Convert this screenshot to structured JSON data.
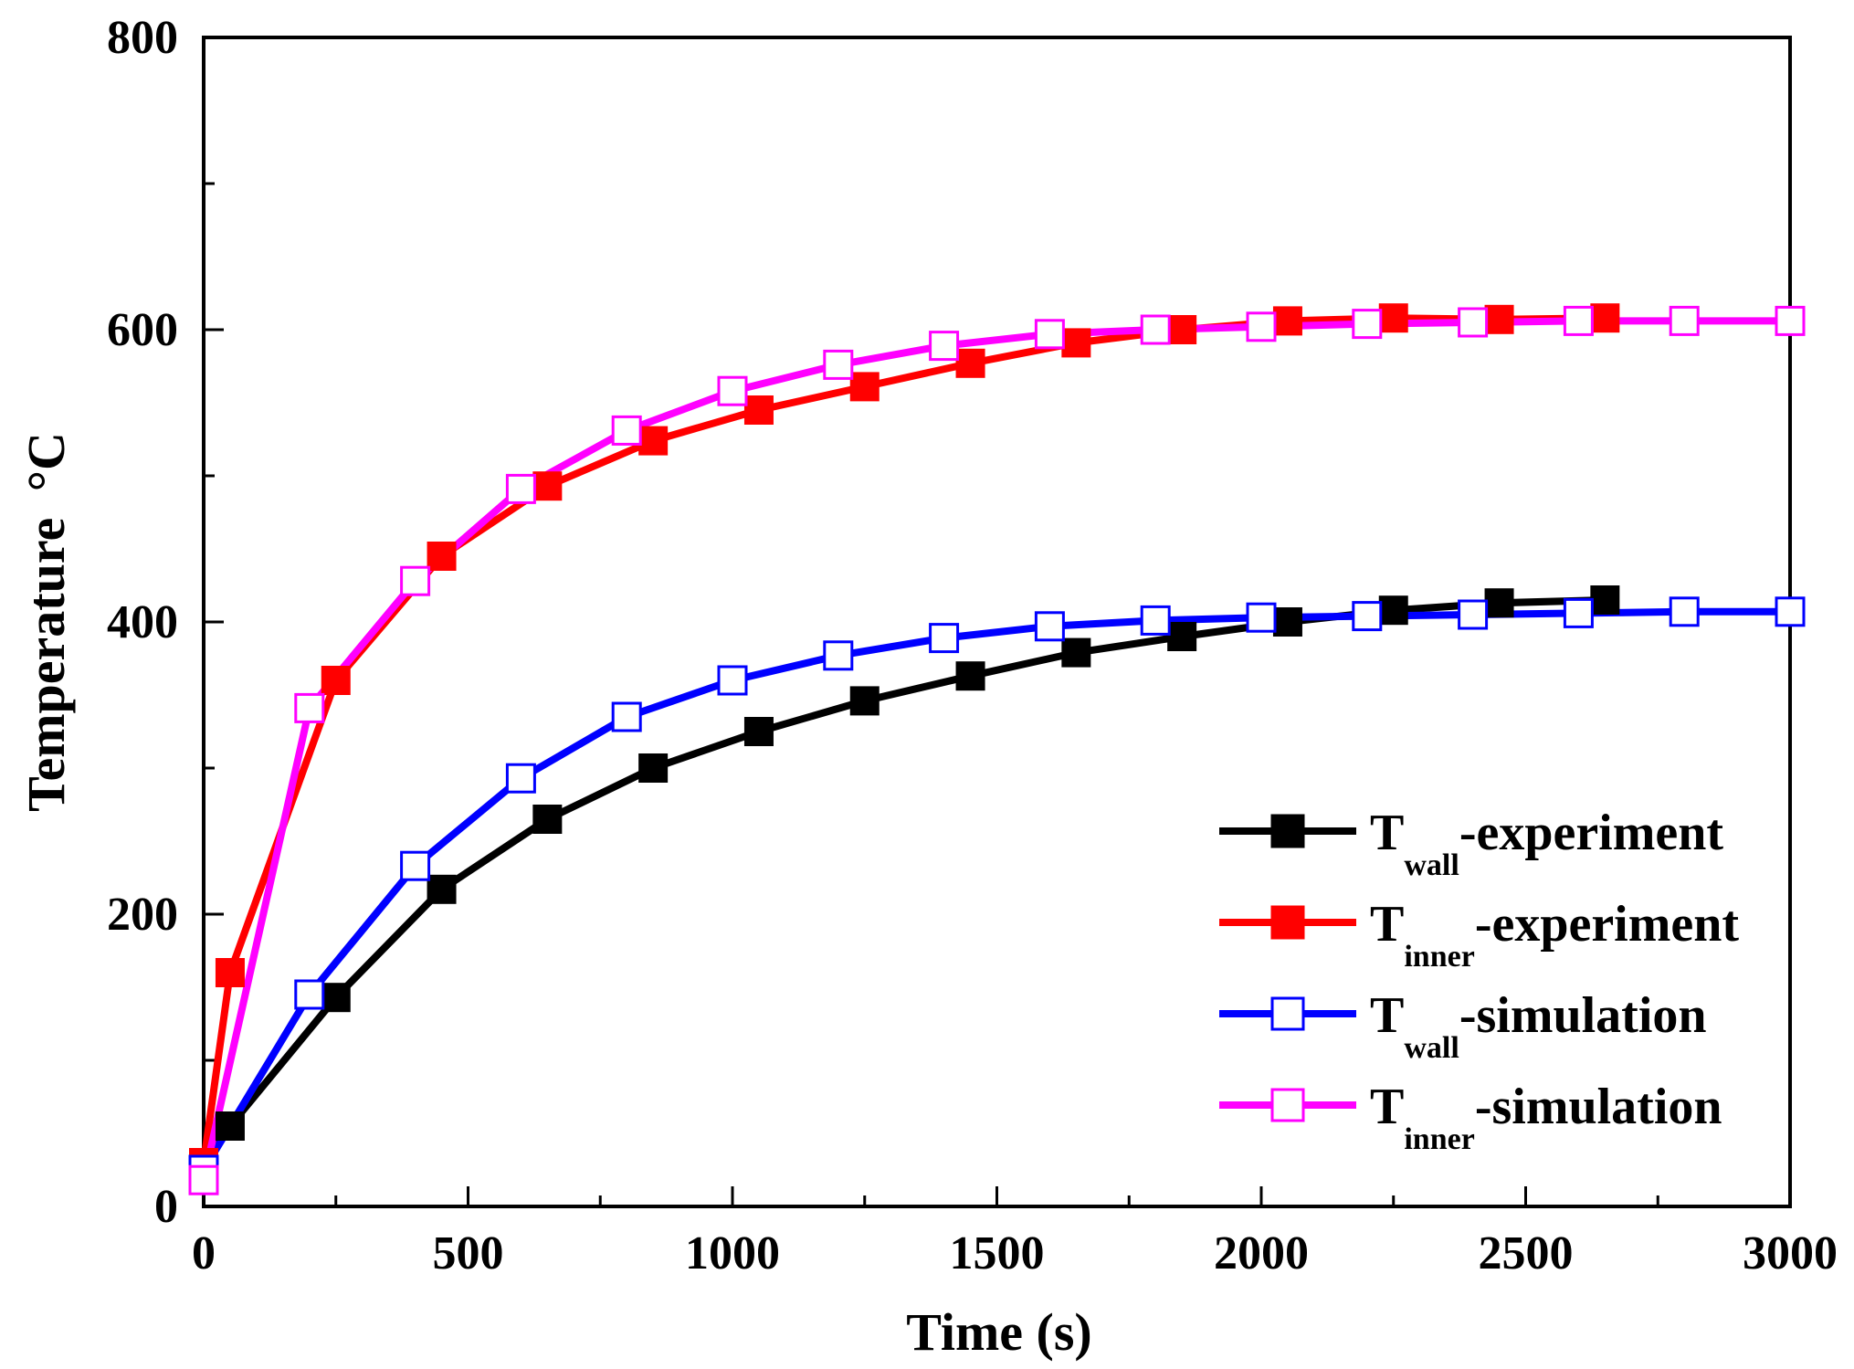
{
  "chart_data": {
    "type": "line",
    "title": "",
    "xlabel": "Time (s)",
    "ylabel": "Temperature",
    "ylabel_unit": "°C",
    "xlim": [
      0,
      3000
    ],
    "ylim": [
      0,
      800
    ],
    "x_ticks": [
      0,
      500,
      1000,
      1500,
      2000,
      2500,
      3000
    ],
    "y_ticks": [
      0,
      200,
      400,
      600,
      800
    ],
    "grid": false,
    "legend_position": "bottom-right",
    "series": [
      {
        "name": "Twall-experiment",
        "legend_main": "T",
        "legend_sub": "wall",
        "legend_suffix": "-experiment",
        "color": "#000000",
        "marker": "filled-square",
        "x": [
          0,
          50,
          250,
          450,
          650,
          850,
          1050,
          1250,
          1450,
          1650,
          1850,
          2050,
          2250,
          2450,
          2650
        ],
        "y": [
          30,
          55,
          143,
          217,
          265,
          300,
          325,
          346,
          363,
          379,
          390,
          400,
          408,
          413,
          415
        ]
      },
      {
        "name": "Tinner-experiment",
        "legend_main": "T",
        "legend_sub": "inner",
        "legend_suffix": "-experiment",
        "color": "#ff0000",
        "marker": "filled-square",
        "x": [
          0,
          50,
          250,
          450,
          650,
          850,
          1050,
          1250,
          1450,
          1650,
          1850,
          2050,
          2250,
          2450,
          2650
        ],
        "y": [
          30,
          160,
          360,
          445,
          493,
          524,
          545,
          561,
          577,
          591,
          600,
          606,
          608,
          607,
          608
        ]
      },
      {
        "name": "Twall-simulation",
        "legend_main": "T",
        "legend_sub": "wall",
        "legend_suffix": "-simulation",
        "color": "#0000ff",
        "marker": "open-square",
        "x": [
          0,
          200,
          400,
          600,
          800,
          1000,
          1200,
          1400,
          1600,
          1800,
          2000,
          2200,
          2400,
          2600,
          2800,
          3000
        ],
        "y": [
          25,
          145,
          233,
          293,
          335,
          360,
          377,
          389,
          397,
          401,
          403,
          404,
          405,
          406,
          407,
          407
        ]
      },
      {
        "name": "Tinner-simulation",
        "legend_main": "T",
        "legend_sub": "inner",
        "legend_suffix": "-simulation",
        "color": "#ff00ff",
        "marker": "open-square",
        "x": [
          0,
          200,
          400,
          600,
          800,
          1000,
          1200,
          1400,
          1600,
          1800,
          2000,
          2200,
          2400,
          2600,
          2800,
          3000
        ],
        "y": [
          18,
          341,
          428,
          491,
          531,
          558,
          576,
          589,
          597,
          600,
          602,
          604,
          605,
          606,
          606,
          606
        ]
      }
    ]
  }
}
